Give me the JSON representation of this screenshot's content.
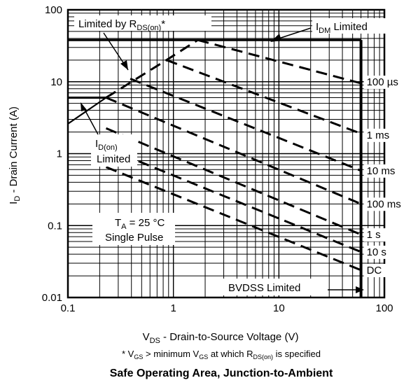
{
  "chart_data": {
    "type": "line",
    "title": "Safe Operating Area, Junction-to-Ambient",
    "xlabel": {
      "pre": "V",
      "sub": "DS",
      "post": " -  Drain-to-Source Voltage (V)"
    },
    "ylabel": {
      "pre": "I",
      "sub": "D",
      "post": " - Drain Current (A)"
    },
    "xscale": "log",
    "yscale": "log",
    "xlim": [
      0.1,
      100
    ],
    "ylim": [
      0.01,
      100
    ],
    "x_ticks": [
      {
        "value": 0.1,
        "label": "0.1"
      },
      {
        "value": 1,
        "label": "1"
      },
      {
        "value": 10,
        "label": "10"
      },
      {
        "value": 100,
        "label": "100"
      }
    ],
    "y_ticks": [
      {
        "value": 0.01,
        "label": "0.01"
      },
      {
        "value": 0.1,
        "label": "0.1"
      },
      {
        "value": 1,
        "label": "1"
      },
      {
        "value": 10,
        "label": "10"
      },
      {
        "value": 100,
        "label": "100"
      }
    ],
    "grid": "log-minor",
    "limits": {
      "idm_current": 38,
      "id_on_current": 6,
      "bvdss_voltage": 60,
      "rds_on_line": [
        [
          0.1,
          2.6
        ],
        [
          0.23,
          6
        ],
        [
          0.86,
          20
        ],
        [
          1.7,
          38
        ]
      ]
    },
    "series": [
      {
        "name": "100 µs",
        "x": [
          1.7,
          60
        ],
        "y": [
          38,
          9.5
        ]
      },
      {
        "name": "1 ms",
        "x": [
          0.86,
          60
        ],
        "y": [
          20,
          1.9
        ]
      },
      {
        "name": "10 ms",
        "x": [
          0.39,
          60
        ],
        "y": [
          11,
          0.58
        ]
      },
      {
        "name": "100 ms",
        "x": [
          0.23,
          60
        ],
        "y": [
          6,
          0.2
        ]
      },
      {
        "name": "1 s",
        "x": [
          0.23,
          60
        ],
        "y": [
          2.25,
          0.075
        ]
      },
      {
        "name": "10 s",
        "x": [
          0.23,
          60
        ],
        "y": [
          1.2,
          0.043
        ]
      },
      {
        "name": "DC",
        "x": [
          0.23,
          60
        ],
        "y": [
          0.65,
          0.024
        ]
      }
    ]
  },
  "annotations": {
    "rds_label": {
      "pre": "Limited by R",
      "sub": "DS(on)",
      "post": "*"
    },
    "idm_label": {
      "pre": "I",
      "sub": "DM",
      "post": " Limited"
    },
    "idon_label": {
      "pre": "I",
      "sub": "D(on)",
      "line2": "Limited"
    },
    "ta_label": {
      "pre": "T",
      "sub": "A",
      "post": " = 25  °C",
      "line2": "Single Pulse"
    },
    "bvdss_label": "BVDSS  Limited"
  },
  "footnote": {
    "a": "* V",
    "a_sub": "GS",
    "b": " > minimum V",
    "b_sub": "GS",
    "c": " at which R",
    "c_sub": "DS(on)",
    "d": " is specified"
  },
  "colors": {
    "ink": "#000000",
    "background": "#ffffff"
  }
}
